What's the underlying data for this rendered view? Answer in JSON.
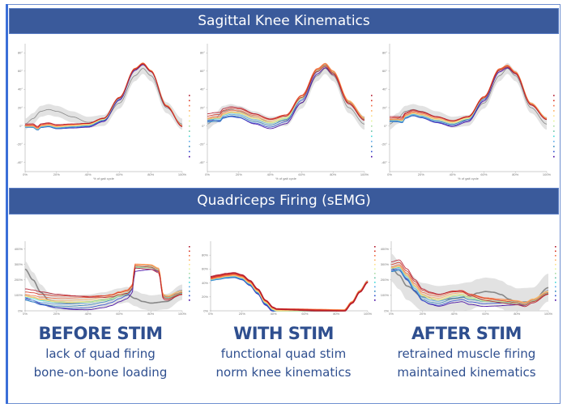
{
  "headers": {
    "kinematics": "Sagittal Knee Kinematics",
    "emg": "Quadriceps Firing (sEMG)"
  },
  "captions": [
    {
      "title": "BEFORE STIM",
      "line1": "lack of quad firing",
      "line2": "bone-on-bone loading"
    },
    {
      "title": "WITH STIM",
      "line1": "functional quad stim",
      "line2": "norm knee kinematics"
    },
    {
      "title": "AFTER STIM",
      "line1": "retrained muscle firing",
      "line2": "maintained kinematics"
    }
  ],
  "colors": {
    "band": "#3a5a9b",
    "caption_text": "#2f4f8f",
    "frame": "#6f8fd0",
    "norm_line": "#888888",
    "norm_band": "#dddddd",
    "series_palette": [
      "#b2182b",
      "#d7301f",
      "#f46d43",
      "#fdae61",
      "#fee08b",
      "#e6f598",
      "#abdda4",
      "#66c2a5",
      "#3cd8d8",
      "#5aa8e8",
      "#3288bd",
      "#2c4fd0",
      "#3f00a0"
    ]
  },
  "chart_data": [
    {
      "id": "kinematics-before",
      "type": "line",
      "title": "Sagittal Knee Kinematics - Before Stim",
      "xlabel": "% of gait cycle",
      "ylabel": "",
      "xlim": [
        0,
        100
      ],
      "ylim": [
        -50,
        90
      ],
      "xticks": [
        "0%",
        "20%",
        "40%",
        "60%",
        "80%",
        "100%"
      ],
      "yticks": [
        "80°",
        "60°",
        "40°",
        "20°",
        "0°",
        "-20°",
        "-40°"
      ],
      "ytick_values": [
        80,
        60,
        40,
        20,
        0,
        -20,
        -40
      ],
      "legend": "right",
      "norm": {
        "x": [
          0,
          5,
          10,
          15,
          20,
          30,
          40,
          50,
          60,
          70,
          75,
          80,
          90,
          100
        ],
        "y": [
          2,
          8,
          16,
          18,
          16,
          10,
          4,
          6,
          25,
          55,
          63,
          55,
          20,
          2
        ],
        "band": 6
      },
      "series_mean": {
        "x": [
          0,
          5,
          8,
          10,
          15,
          20,
          30,
          40,
          50,
          60,
          70,
          75,
          80,
          90,
          100
        ],
        "y": [
          0,
          0,
          -3,
          0,
          1,
          -1,
          0,
          1,
          7,
          30,
          62,
          68,
          60,
          22,
          0
        ]
      },
      "series_count": 13,
      "series_spread": 2
    },
    {
      "id": "kinematics-with",
      "type": "line",
      "title": "Sagittal Knee Kinematics - With Stim",
      "xlabel": "% of gait cycle",
      "xlim": [
        0,
        100
      ],
      "ylim": [
        -50,
        90
      ],
      "xticks": [
        "0%",
        "20%",
        "40%",
        "60%",
        "80%",
        "100%"
      ],
      "yticks": [
        "80°",
        "60°",
        "40°",
        "20°",
        "0°",
        "-20°",
        "-40°"
      ],
      "ytick_values": [
        80,
        60,
        40,
        20,
        0,
        -20,
        -40
      ],
      "legend": "right",
      "norm": {
        "x": [
          0,
          5,
          10,
          15,
          20,
          30,
          40,
          50,
          60,
          70,
          75,
          80,
          90,
          100
        ],
        "y": [
          2,
          8,
          16,
          18,
          16,
          10,
          4,
          6,
          25,
          55,
          63,
          55,
          20,
          2
        ],
        "band": 6
      },
      "series_mean": {
        "x": [
          0,
          5,
          8,
          10,
          15,
          20,
          30,
          40,
          50,
          60,
          70,
          75,
          80,
          90,
          100
        ],
        "y": [
          8,
          9,
          9,
          13,
          15,
          14,
          8,
          3,
          8,
          30,
          60,
          66,
          58,
          26,
          8
        ]
      },
      "series_count": 13,
      "series_spread": 5
    },
    {
      "id": "kinematics-after",
      "type": "line",
      "title": "Sagittal Knee Kinematics - After Stim",
      "xlabel": "% of gait cycle",
      "xlim": [
        0,
        100
      ],
      "ylim": [
        -50,
        90
      ],
      "xticks": [
        "0%",
        "20%",
        "40%",
        "60%",
        "80%",
        "100%"
      ],
      "yticks": [
        "80°",
        "60°",
        "40°",
        "20°",
        "0°",
        "-20°",
        "-40°"
      ],
      "ytick_values": [
        80,
        60,
        40,
        20,
        0,
        -20,
        -40
      ],
      "legend": "right",
      "norm": {
        "x": [
          0,
          5,
          10,
          15,
          20,
          30,
          40,
          50,
          60,
          70,
          75,
          80,
          90,
          100
        ],
        "y": [
          2,
          8,
          16,
          18,
          16,
          10,
          4,
          6,
          25,
          55,
          63,
          55,
          20,
          2
        ],
        "band": 6
      },
      "series_mean": {
        "x": [
          0,
          5,
          8,
          10,
          15,
          20,
          30,
          40,
          50,
          60,
          70,
          75,
          80,
          90,
          100
        ],
        "y": [
          7,
          7,
          6,
          11,
          14,
          12,
          7,
          3,
          8,
          30,
          61,
          65,
          58,
          24,
          8
        ]
      },
      "series_count": 13,
      "series_spread": 3
    },
    {
      "id": "emg-before",
      "type": "line",
      "title": "Quadriceps Firing (sEMG) - Before Stim",
      "xlabel": "",
      "xlim": [
        0,
        100
      ],
      "ylim": [
        0,
        450
      ],
      "xticks": [
        "0%",
        "20%",
        "40%",
        "60%",
        "80%",
        "100%"
      ],
      "yticks": [
        "400%",
        "300%",
        "200%",
        "100%",
        "0%"
      ],
      "ytick_values": [
        400,
        300,
        200,
        100,
        0
      ],
      "legend": "right",
      "norm": {
        "x": [
          0,
          5,
          10,
          15,
          20,
          30,
          40,
          50,
          60,
          65,
          70,
          75,
          80,
          90,
          100
        ],
        "y": [
          270,
          200,
          120,
          70,
          55,
          50,
          55,
          70,
          95,
          105,
          80,
          60,
          50,
          60,
          120
        ],
        "band": 50
      },
      "series_mean": {
        "x": [
          0,
          5,
          10,
          20,
          30,
          40,
          50,
          55,
          60,
          65,
          68,
          70,
          80,
          85,
          88,
          90,
          100
        ],
        "y": [
          100,
          90,
          75,
          60,
          55,
          55,
          65,
          75,
          95,
          110,
          140,
          280,
          280,
          260,
          90,
          85,
          120
        ]
      },
      "series_count": 13,
      "series_spread": 40
    },
    {
      "id": "emg-with",
      "type": "line",
      "title": "Quadriceps Firing (sEMG) - With Stim",
      "xlabel": "",
      "xlim": [
        0,
        100
      ],
      "ylim": [
        0,
        100
      ],
      "xticks": [
        "0%",
        "20%",
        "40%",
        "60%",
        "80%",
        "100%"
      ],
      "yticks": [
        "80%",
        "60%",
        "40%",
        "20%",
        "0%"
      ],
      "ytick_values": [
        80,
        60,
        40,
        20,
        0
      ],
      "legend": "right",
      "norm": null,
      "series_mean": {
        "x": [
          0,
          5,
          10,
          15,
          20,
          25,
          30,
          35,
          40,
          42,
          85,
          90,
          95,
          100
        ],
        "y": [
          46,
          48,
          50,
          51,
          48,
          40,
          28,
          12,
          2,
          0,
          0,
          12,
          28,
          42
        ]
      },
      "series_count": 13,
      "series_spread": 3
    },
    {
      "id": "emg-after",
      "type": "line",
      "title": "Quadriceps Firing (sEMG) - After Stim",
      "xlabel": "",
      "xlim": [
        0,
        100
      ],
      "ylim": [
        0,
        450
      ],
      "xticks": [
        "0%",
        "20%",
        "40%",
        "60%",
        "80%",
        "100%"
      ],
      "yticks": [
        "400%",
        "300%",
        "200%",
        "100%",
        "0%"
      ],
      "ytick_values": [
        400,
        300,
        200,
        100,
        0
      ],
      "legend": "right",
      "norm": {
        "x": [
          0,
          5,
          10,
          20,
          30,
          40,
          50,
          55,
          60,
          65,
          70,
          75,
          80,
          90,
          100
        ],
        "y": [
          280,
          230,
          160,
          90,
          70,
          80,
          95,
          115,
          125,
          120,
          105,
          75,
          55,
          60,
          150
        ],
        "band": 90
      },
      "series_mean": {
        "x": [
          0,
          5,
          10,
          15,
          20,
          25,
          30,
          40,
          45,
          50,
          60,
          70,
          80,
          85,
          90,
          100
        ],
        "y": [
          280,
          290,
          230,
          160,
          100,
          80,
          70,
          95,
          100,
          80,
          60,
          55,
          50,
          40,
          65,
          120
        ]
      },
      "series_count": 13,
      "series_spread": 35
    }
  ]
}
